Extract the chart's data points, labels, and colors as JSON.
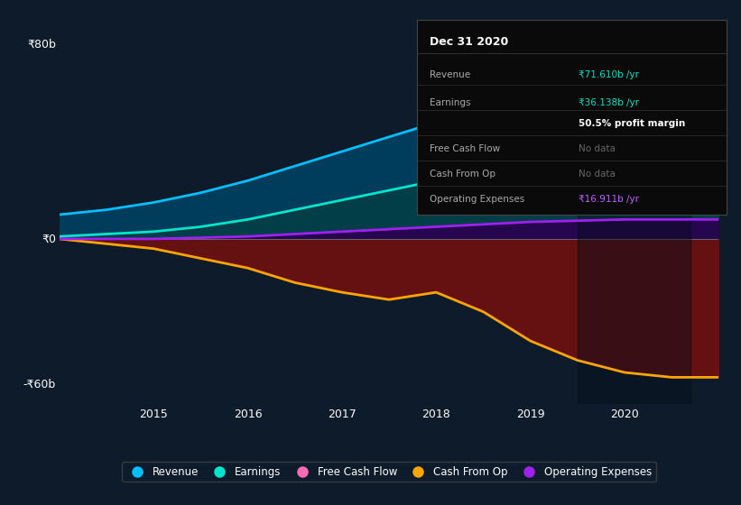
{
  "background_color": "#0d1b2a",
  "chart_bg": "#0d1b2a",
  "x_years": [
    2014.0,
    2014.5,
    2015.0,
    2015.5,
    2016.0,
    2016.5,
    2017.0,
    2017.5,
    2018.0,
    2018.5,
    2019.0,
    2019.5,
    2020.0,
    2020.5,
    2021.0
  ],
  "revenue": [
    10,
    12,
    15,
    19,
    24,
    30,
    36,
    42,
    48,
    54,
    58,
    62,
    66,
    70,
    73
  ],
  "earnings": [
    1,
    2,
    3,
    5,
    8,
    12,
    16,
    20,
    24,
    28,
    30,
    32,
    34,
    36,
    37
  ],
  "cash_from_op": [
    0,
    -2,
    -4,
    -8,
    -12,
    -18,
    -22,
    -25,
    -22,
    -30,
    -42,
    -50,
    -55,
    -57,
    -57
  ],
  "operating_expenses": [
    0,
    0,
    0,
    0.5,
    1,
    2,
    3,
    4,
    5,
    6,
    7,
    7.5,
    8,
    8,
    8
  ],
  "revenue_color": "#00bfff",
  "earnings_color": "#00e5cc",
  "cash_from_op_color": "#ffa500",
  "operating_expenses_color": "#a020f0",
  "y_label_0": "₹0",
  "y_label_80": "₹80b",
  "y_label_neg60": "-₹60b",
  "x_ticks": [
    2015,
    2016,
    2017,
    2018,
    2019,
    2020
  ],
  "ylim": [
    -68,
    88
  ],
  "legend_items": [
    {
      "label": "Revenue",
      "color": "#00bfff"
    },
    {
      "label": "Earnings",
      "color": "#00e5cc"
    },
    {
      "label": "Free Cash Flow",
      "color": "#ff69b4"
    },
    {
      "label": "Cash From Op",
      "color": "#ffa500"
    },
    {
      "label": "Operating Expenses",
      "color": "#a020f0"
    }
  ],
  "tooltip_rows": [
    {
      "label": "Revenue",
      "value": "₹71.610b /yr",
      "val_color": "#00e5cc"
    },
    {
      "label": "Earnings",
      "value": "₹36.138b /yr",
      "val_color": "#00e5cc"
    },
    {
      "label": "",
      "value": "50.5% profit margin",
      "val_color": "white"
    },
    {
      "label": "Free Cash Flow",
      "value": "No data",
      "val_color": "#666666"
    },
    {
      "label": "Cash From Op",
      "value": "No data",
      "val_color": "#666666"
    },
    {
      "label": "Operating Expenses",
      "value": "₹16.911b /yr",
      "val_color": "#c060ff"
    }
  ]
}
